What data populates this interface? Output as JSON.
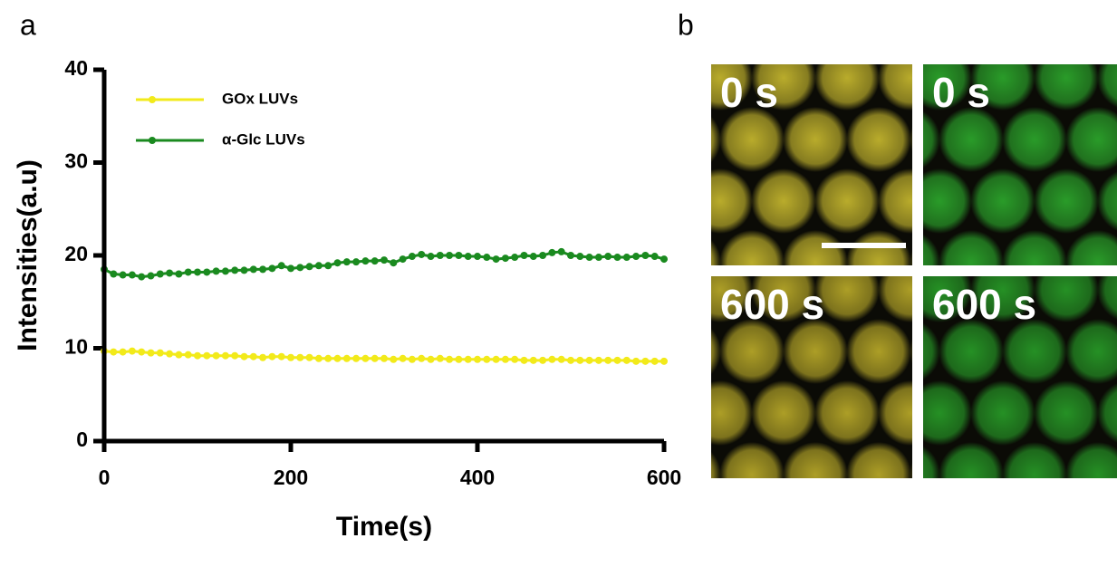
{
  "panel_labels": [
    "a",
    "b"
  ],
  "chart_data": {
    "type": "line",
    "xlabel": "Time(s)",
    "ylabel": "Intensities(a.u)",
    "x": [
      0,
      10,
      20,
      30,
      40,
      50,
      60,
      70,
      80,
      90,
      100,
      110,
      120,
      130,
      140,
      150,
      160,
      170,
      180,
      190,
      200,
      210,
      220,
      230,
      240,
      250,
      260,
      270,
      280,
      290,
      300,
      310,
      320,
      330,
      340,
      350,
      360,
      370,
      380,
      390,
      400,
      410,
      420,
      430,
      440,
      450,
      460,
      470,
      480,
      490,
      500,
      510,
      520,
      530,
      540,
      550,
      560,
      570,
      580,
      590,
      600
    ],
    "series": [
      {
        "name": "GOx LUVs",
        "color": "#f2ea1a",
        "values": [
          9.7,
          9.6,
          9.6,
          9.7,
          9.6,
          9.5,
          9.5,
          9.4,
          9.3,
          9.3,
          9.2,
          9.2,
          9.2,
          9.2,
          9.2,
          9.1,
          9.1,
          9.0,
          9.1,
          9.1,
          9.0,
          9.0,
          9.0,
          8.9,
          8.9,
          8.9,
          8.9,
          8.9,
          8.9,
          8.9,
          8.9,
          8.8,
          8.9,
          8.8,
          8.9,
          8.8,
          8.9,
          8.8,
          8.8,
          8.8,
          8.8,
          8.8,
          8.8,
          8.8,
          8.8,
          8.7,
          8.7,
          8.7,
          8.8,
          8.8,
          8.7,
          8.7,
          8.7,
          8.7,
          8.7,
          8.7,
          8.7,
          8.6,
          8.6,
          8.6,
          8.6
        ]
      },
      {
        "name": "α-Glc LUVs",
        "color": "#1a8a1f",
        "values": [
          18.5,
          18.0,
          17.9,
          17.9,
          17.7,
          17.8,
          18.0,
          18.1,
          18.0,
          18.2,
          18.2,
          18.2,
          18.3,
          18.3,
          18.4,
          18.4,
          18.5,
          18.5,
          18.6,
          18.9,
          18.6,
          18.7,
          18.8,
          18.9,
          18.9,
          19.2,
          19.3,
          19.3,
          19.4,
          19.4,
          19.5,
          19.2,
          19.6,
          19.9,
          20.1,
          19.9,
          20.0,
          20.0,
          20.0,
          19.9,
          19.9,
          19.8,
          19.6,
          19.7,
          19.8,
          20.0,
          19.9,
          20.0,
          20.3,
          20.4,
          20.0,
          19.9,
          19.8,
          19.8,
          19.9,
          19.8,
          19.8,
          19.9,
          20.0,
          19.9,
          19.6
        ]
      }
    ],
    "xlim": [
      0,
      600
    ],
    "xticks": [
      0,
      200,
      400,
      600
    ],
    "ylim": [
      0,
      40
    ],
    "yticks": [
      0,
      10,
      20,
      30,
      40
    ],
    "legend": "upper left"
  },
  "images": [
    {
      "label": "0 s",
      "color": "#d8c832"
    },
    {
      "label": "0 s",
      "color": "#2fb52f"
    },
    {
      "label": "600 s",
      "color": "#c9b82c"
    },
    {
      "label": "600 s",
      "color": "#2aa82a"
    }
  ]
}
